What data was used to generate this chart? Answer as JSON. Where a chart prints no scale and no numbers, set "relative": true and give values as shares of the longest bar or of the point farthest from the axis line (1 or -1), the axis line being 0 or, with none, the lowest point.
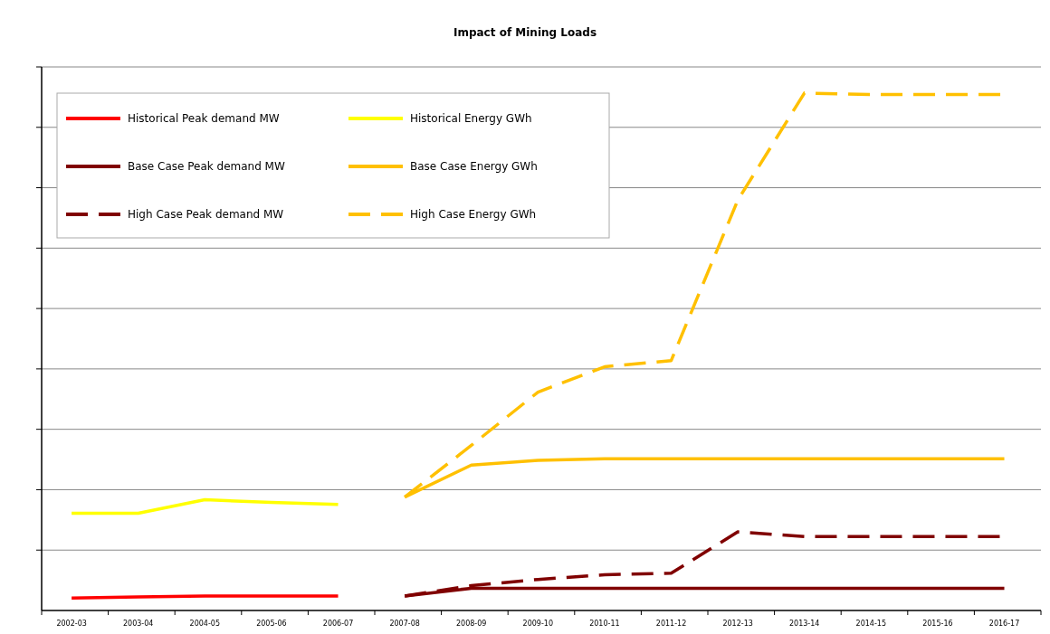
{
  "chart_data": {
    "type": "line",
    "title": "Impact of Mining Loads",
    "relative": true,
    "grid": "y",
    "legend": "top left",
    "categories": [
      "2002-03",
      "2003-04",
      "2004-05",
      "2005-06",
      "2006-07",
      "2007-08",
      "2008-09",
      "2009-10",
      "2010-11",
      "2011-12",
      "2012-13",
      "2013-14",
      "2014-15",
      "2015-16",
      "2016-17"
    ],
    "series": [
      {
        "name": "Historical Peak demand MW",
        "color": "#ff0000",
        "line_style": "solid",
        "values": [
          0.024,
          0.026,
          0.028,
          0.028,
          0.028,
          null,
          null,
          null,
          null,
          null,
          null,
          null,
          null,
          null,
          null
        ]
      },
      {
        "name": "Historical Energy GWh",
        "color": "#ffff00",
        "line_style": "solid",
        "values": [
          0.188,
          0.188,
          0.214,
          0.209,
          0.205,
          null,
          null,
          null,
          null,
          null,
          null,
          null,
          null,
          null,
          null
        ]
      },
      {
        "name": "Base Case Peak demand MW",
        "color": "#800000",
        "line_style": "solid",
        "values": [
          null,
          null,
          null,
          null,
          null,
          0.028,
          0.043,
          0.043,
          0.043,
          0.043,
          0.043,
          0.043,
          0.043,
          0.043,
          0.043
        ]
      },
      {
        "name": "Base Case Energy GWh",
        "color": "#ffc000",
        "line_style": "solid",
        "values": [
          null,
          null,
          null,
          null,
          null,
          0.219,
          0.281,
          0.29,
          0.293,
          0.293,
          0.293,
          0.293,
          0.293,
          0.293,
          0.293
        ]
      },
      {
        "name": "High Case Peak demand MW",
        "color": "#800000",
        "line_style": "dashed",
        "values": [
          null,
          null,
          null,
          null,
          null,
          0.028,
          0.048,
          0.06,
          0.069,
          0.072,
          0.152,
          0.143,
          0.143,
          0.143,
          0.143
        ]
      },
      {
        "name": "High Case Energy GWh",
        "color": "#ffc000",
        "line_style": "dashed",
        "values": [
          null,
          null,
          null,
          null,
          null,
          0.219,
          0.319,
          0.422,
          0.471,
          0.483,
          0.793,
          1,
          0.997,
          0.997,
          0.997
        ]
      }
    ]
  }
}
